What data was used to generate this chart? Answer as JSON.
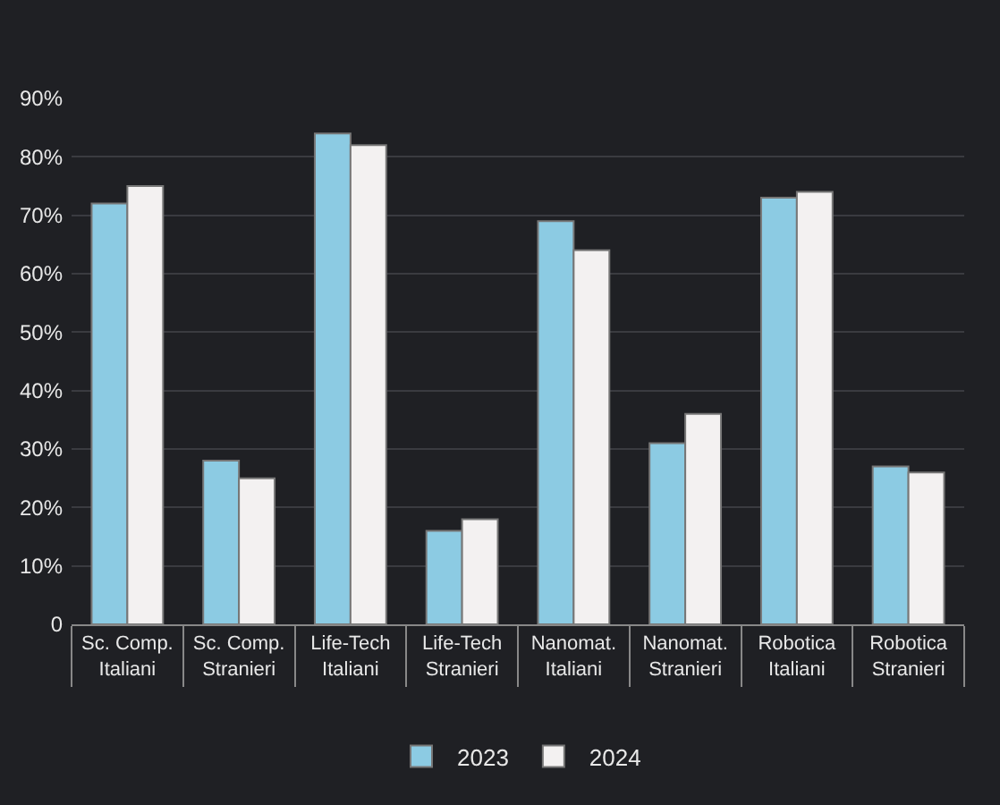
{
  "chart_data": {
    "type": "bar",
    "categories": [
      "Sc. Comp.\nItaliani",
      "Sc. Comp.\nStranieri",
      "Life-Tech\nItaliani",
      "Life-Tech\nStranieri",
      "Nanomat.\nItaliani",
      "Nanomat.\nStranieri",
      "Robotica\nItaliani",
      "Robotica\nStranieri"
    ],
    "series": [
      {
        "name": "2023",
        "color": "#8ccbe3",
        "values": [
          72,
          28,
          84,
          16,
          69,
          31,
          73,
          27
        ]
      },
      {
        "name": "2024",
        "color": "#f3f1f1",
        "values": [
          75,
          25,
          82,
          18,
          64,
          36,
          74,
          26
        ]
      }
    ],
    "ylim": [
      0,
      90
    ],
    "yticks": [
      0,
      {
        "value": 10,
        "label": "10%"
      },
      {
        "value": 20,
        "label": "20%"
      },
      {
        "value": 30,
        "label": "30%"
      },
      {
        "value": 40,
        "label": "40%"
      },
      {
        "value": 50,
        "label": "50%"
      },
      {
        "value": 60,
        "label": "60%"
      },
      {
        "value": 70,
        "label": "70%"
      },
      {
        "value": 80,
        "label": "80%"
      },
      {
        "value": 90,
        "label": "90%"
      }
    ],
    "grid": "y",
    "legend": "bottom"
  }
}
